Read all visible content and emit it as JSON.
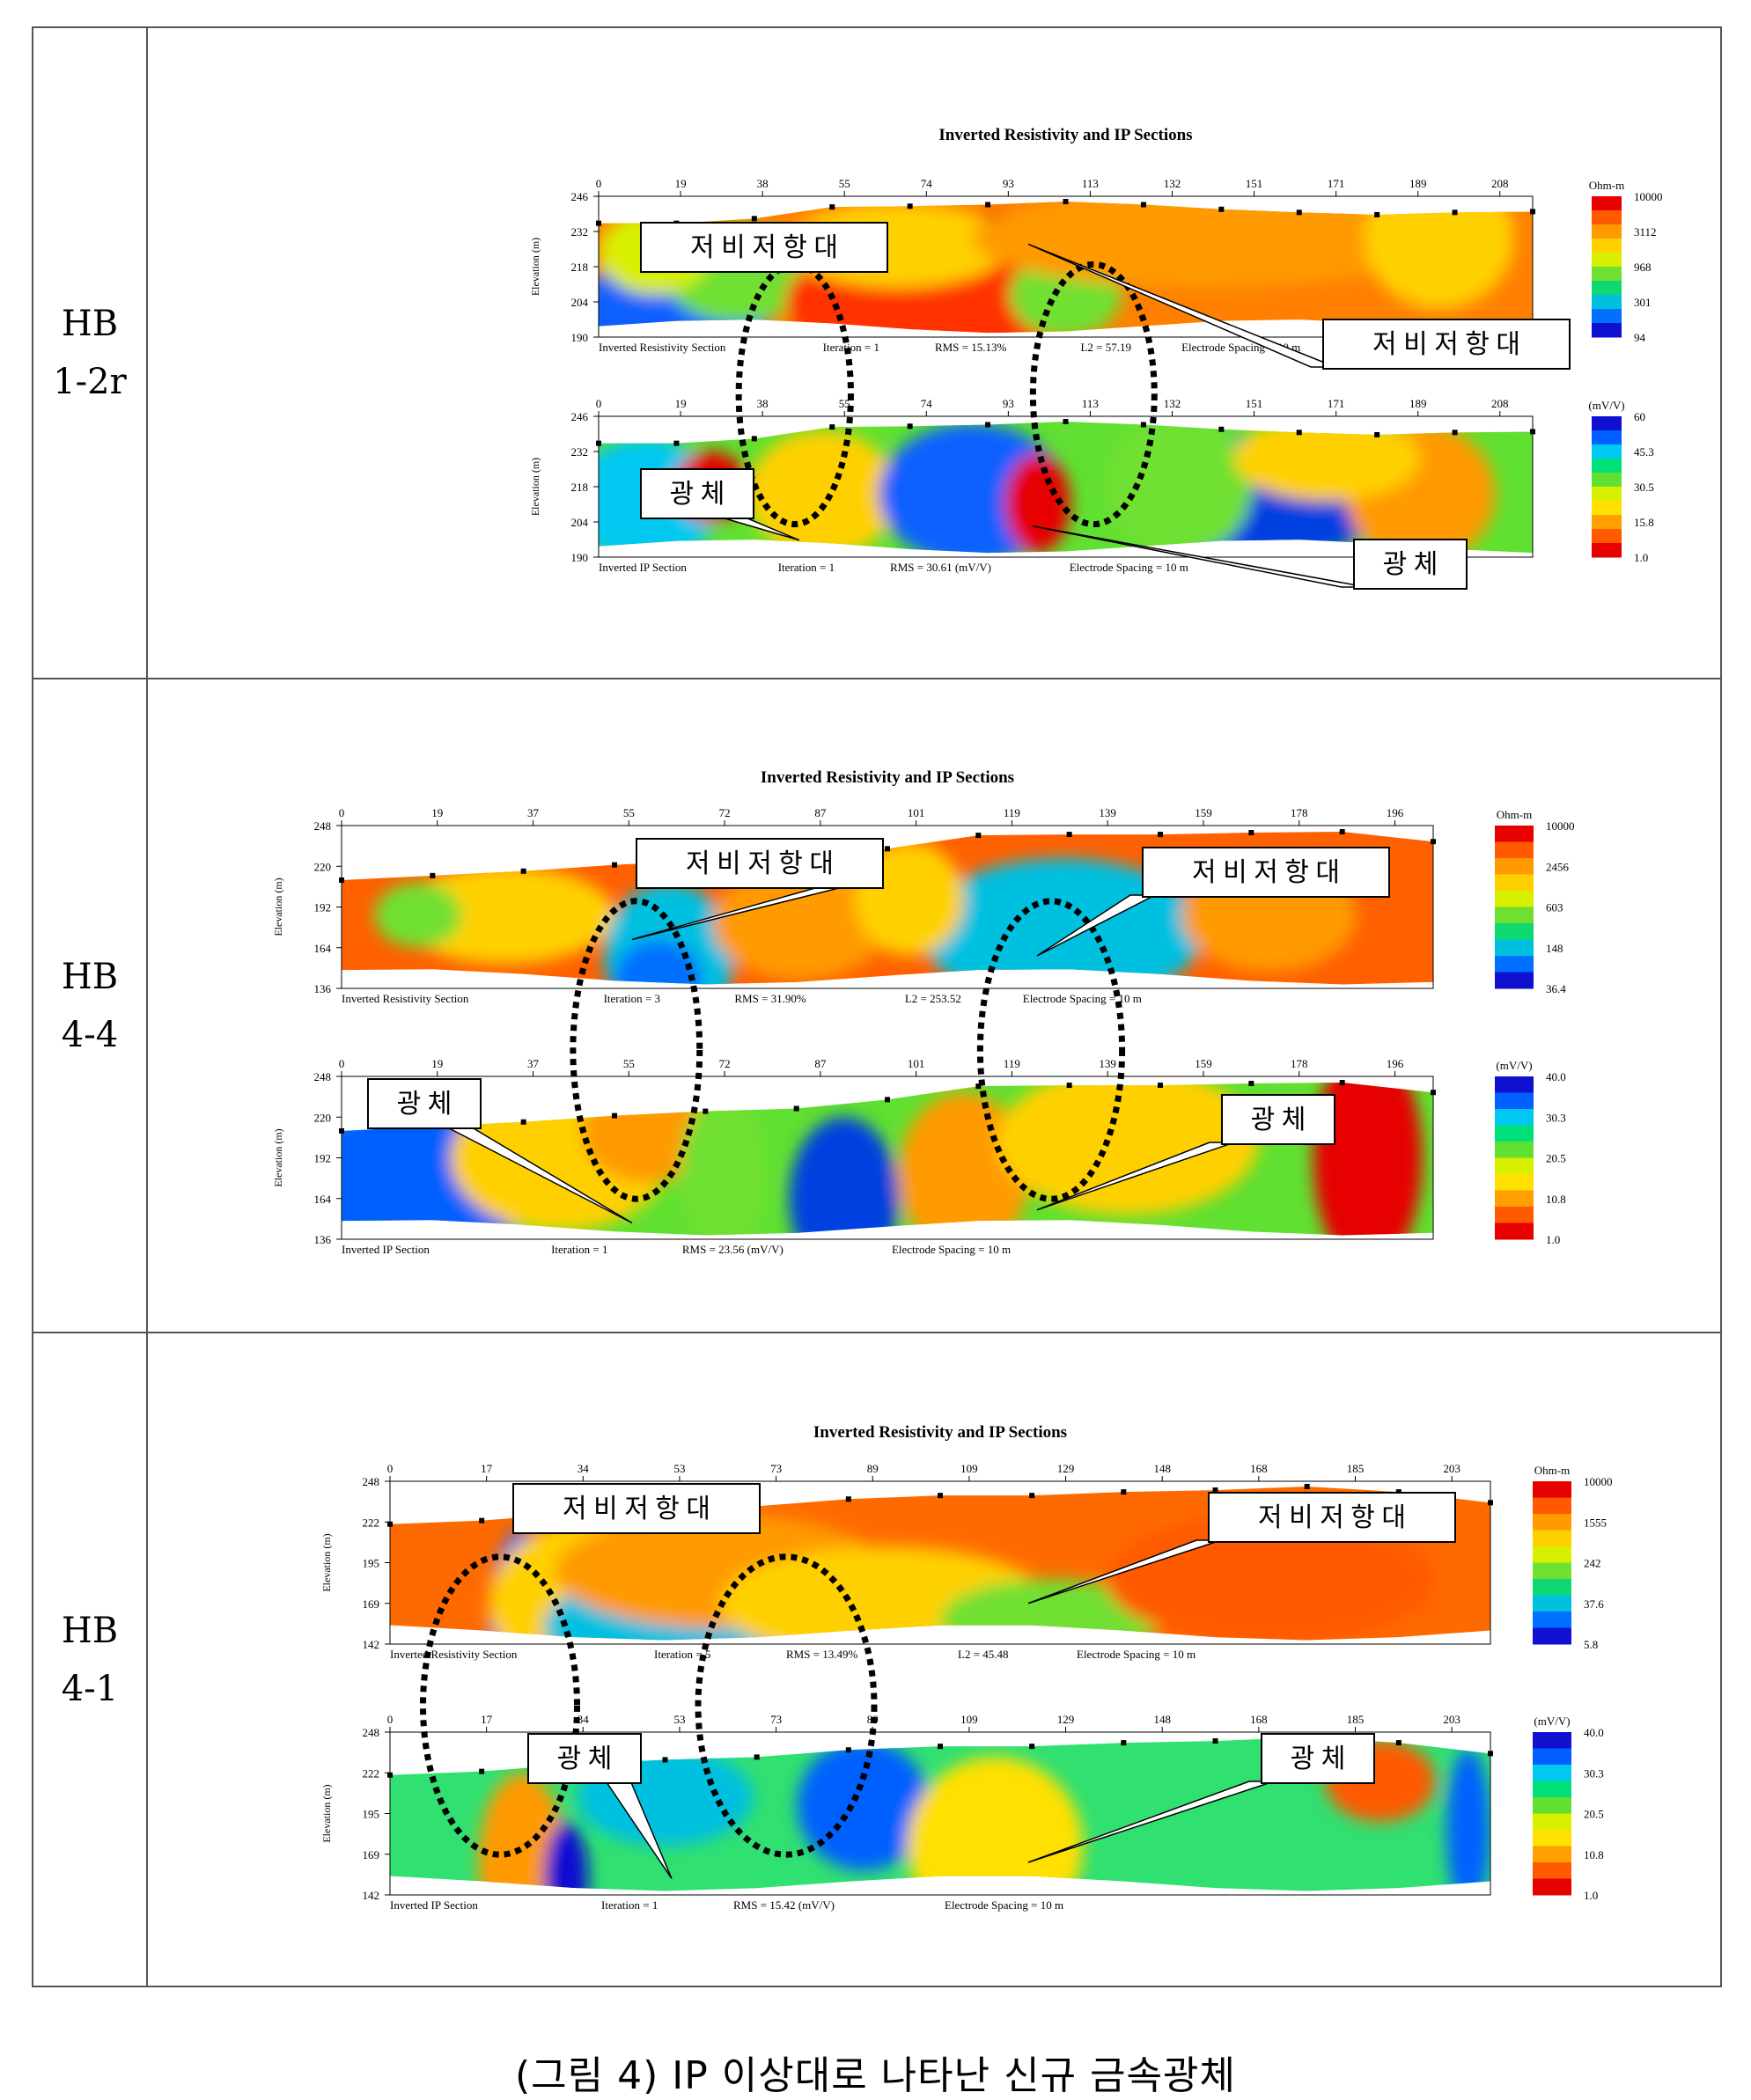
{
  "rows": [
    {
      "label_line1": "HB",
      "label_line2": "1-2r",
      "title": "Inverted Resistivity and IP Sections",
      "x_ticks": [
        "0",
        "19",
        "38",
        "55",
        "74",
        "93",
        "113",
        "132",
        "151",
        "171",
        "189",
        "208"
      ],
      "y_ticks": [
        "246",
        "232",
        "218",
        "204",
        "190"
      ],
      "y_axis_label": "Elevation (m)",
      "res_unit": "Ohm-m",
      "res_scale": [
        "10000",
        "3112",
        "968",
        "301",
        "94"
      ],
      "ip_unit": "(mV/V)",
      "ip_scale": [
        "60",
        "45.3",
        "30.5",
        "15.8",
        "1.0"
      ],
      "res_footer": [
        "Inverted Resistivity Section",
        "Iteration = 1",
        "RMS = 15.13%",
        "L2 = 57.19",
        "Electrode Spacing = 10 m"
      ],
      "ip_footer": [
        "Inverted IP Section",
        "Iteration = 1",
        "RMS = 30.61 (mV/V)",
        "Electrode Spacing = 10 m"
      ],
      "callout_low_res": "저 비 저 항 대",
      "callout_ore": "광  체"
    },
    {
      "label_line1": "HB",
      "label_line2": "4-4",
      "title": "Inverted Resistivity and IP Sections",
      "x_ticks": [
        "0",
        "19",
        "37",
        "55",
        "72",
        "87",
        "101",
        "119",
        "139",
        "159",
        "178",
        "196"
      ],
      "y_ticks": [
        "248",
        "220",
        "192",
        "164",
        "136"
      ],
      "y_axis_label": "Elevation (m)",
      "res_unit": "Ohm-m",
      "res_scale": [
        "10000",
        "2456",
        "603",
        "148",
        "36.4"
      ],
      "ip_unit": "(mV/V)",
      "ip_scale": [
        "40.0",
        "30.3",
        "20.5",
        "10.8",
        "1.0"
      ],
      "res_footer": [
        "Inverted Resistivity Section",
        "Iteration = 3",
        "RMS = 31.90%",
        "L2 = 253.52",
        "Electrode Spacing = 10 m"
      ],
      "ip_footer": [
        "Inverted IP Section",
        "Iteration = 1",
        "RMS = 23.56 (mV/V)",
        "Electrode Spacing = 10 m"
      ],
      "callout_low_res": "저 비 저 항 대",
      "callout_ore": "광  체"
    },
    {
      "label_line1": "HB",
      "label_line2": "4-1",
      "title": "Inverted Resistivity and IP Sections",
      "x_ticks": [
        "0",
        "17",
        "34",
        "53",
        "73",
        "89",
        "109",
        "129",
        "148",
        "168",
        "185",
        "203"
      ],
      "y_ticks": [
        "248",
        "222",
        "195",
        "169",
        "142"
      ],
      "y_axis_label": "Elevation (m)",
      "res_unit": "Ohm-m",
      "res_scale": [
        "10000",
        "1555",
        "242",
        "37.6",
        "5.8"
      ],
      "ip_unit": "(mV/V)",
      "ip_scale": [
        "40.0",
        "30.3",
        "20.5",
        "10.8",
        "1.0"
      ],
      "res_footer": [
        "Inverted Resistivity Section",
        "Iteration = 5",
        "RMS = 13.49%",
        "L2 = 45.48",
        "Electrode Spacing = 10 m"
      ],
      "ip_footer": [
        "Inverted IP Section",
        "Iteration = 1",
        "RMS = 15.42 (mV/V)",
        "Electrode Spacing = 10 m"
      ],
      "callout_low_res": "저 비 저 항 대",
      "callout_ore": "광  체"
    }
  ],
  "caption": "(그림 4) IP 이상대로 나타난 신규 금속광체"
}
